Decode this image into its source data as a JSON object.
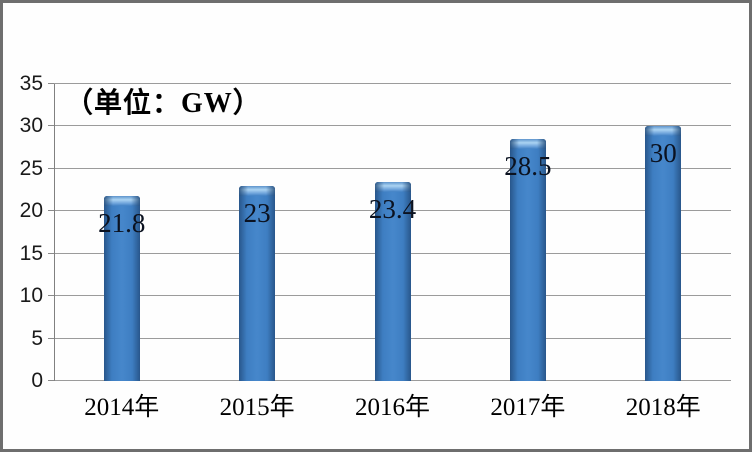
{
  "frame": {
    "background": "#fefefe",
    "border_color": "#6e6e6e"
  },
  "chart_data": {
    "type": "bar",
    "title": "（单位：GW）",
    "unit": "GW",
    "categories": [
      "2014年",
      "2015年",
      "2016年",
      "2017年",
      "2018年"
    ],
    "values": [
      21.8,
      23,
      23.4,
      28.5,
      30
    ],
    "value_labels": [
      "21.8",
      "23",
      "23.4",
      "28.5",
      "30"
    ],
    "ylim": [
      0,
      35
    ],
    "yticks": [
      0,
      5,
      10,
      15,
      20,
      25,
      30,
      35
    ],
    "grid": true,
    "legend": "none",
    "bar_color": "#4687cb",
    "bar_edge_color": "#28568b",
    "bar_highlight_color": "#abd3f2",
    "gridline_color": "#9b9b9b",
    "axis_color": "#808080",
    "text_color": "#000000"
  }
}
